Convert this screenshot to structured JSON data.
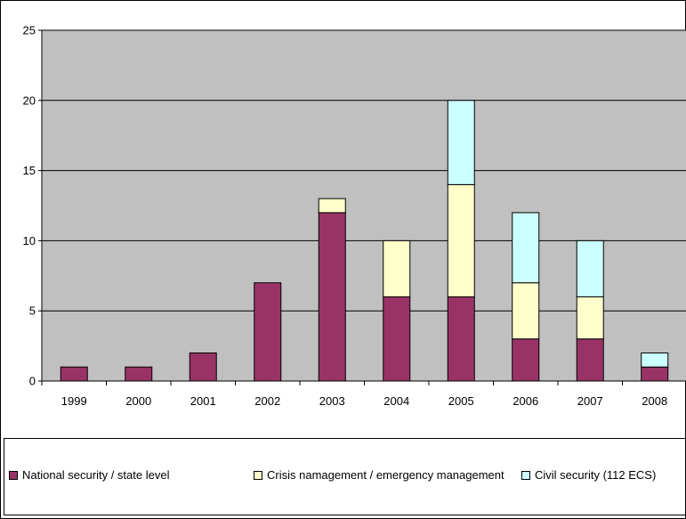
{
  "chart_data": {
    "type": "bar",
    "stacked": true,
    "title": "",
    "xlabel": "",
    "ylabel": "",
    "ylim": [
      0,
      25
    ],
    "yticks": [
      0,
      5,
      10,
      15,
      20,
      25
    ],
    "grid": true,
    "legend_position": "bottom",
    "categories": [
      "1999",
      "2000",
      "2001",
      "2002",
      "2003",
      "2004",
      "2005",
      "2006",
      "2007",
      "2008"
    ],
    "series": [
      {
        "name": "National security / state level",
        "color": "#993366",
        "values": [
          1,
          1,
          2,
          7,
          12,
          6,
          6,
          3,
          3,
          1
        ]
      },
      {
        "name": "Crisis namagement / emergency management",
        "color": "#ffffcc",
        "values": [
          0,
          0,
          0,
          0,
          1,
          4,
          8,
          4,
          3,
          0
        ]
      },
      {
        "name": "Civil security (112 ECS)",
        "color": "#ccffff",
        "values": [
          0,
          0,
          0,
          0,
          0,
          0,
          6,
          5,
          4,
          1
        ]
      }
    ],
    "plot_background": "#c0c0c0"
  }
}
